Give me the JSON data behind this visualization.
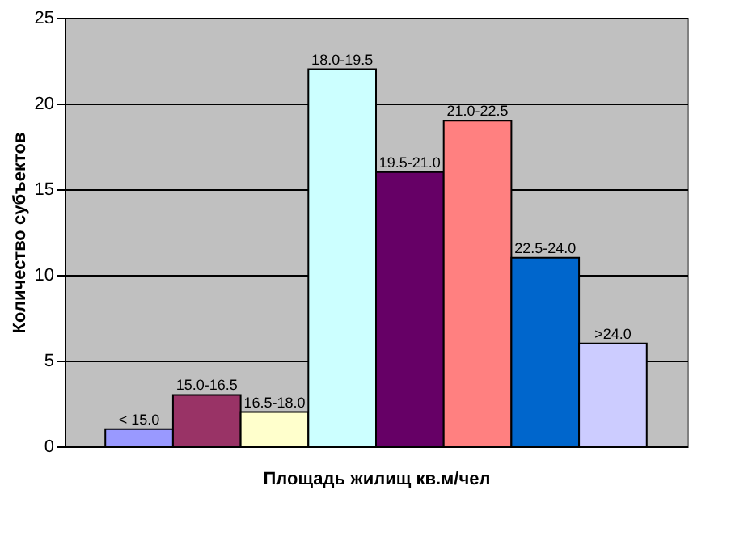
{
  "chart_data": {
    "type": "bar",
    "xlabel": "Площадь жилищ кв.м/чел",
    "ylabel": "Количество субъектов",
    "categories": [
      "< 15.0",
      "15.0-16.5",
      "16.5-18.0",
      "18.0-19.5",
      "19.5-21.0",
      "21.0-22.5",
      "22.5-24.0",
      ">24.0"
    ],
    "values": [
      1,
      3,
      2,
      22,
      16,
      19,
      11,
      6
    ],
    "colors": [
      "#9999ff",
      "#993366",
      "#ffffcc",
      "#ccffff",
      "#660066",
      "#ff8080",
      "#0066cc",
      "#ccccff"
    ],
    "ylim": [
      0,
      25
    ],
    "yticks": [
      0,
      5,
      10,
      15,
      20,
      25
    ],
    "grid": "y"
  }
}
